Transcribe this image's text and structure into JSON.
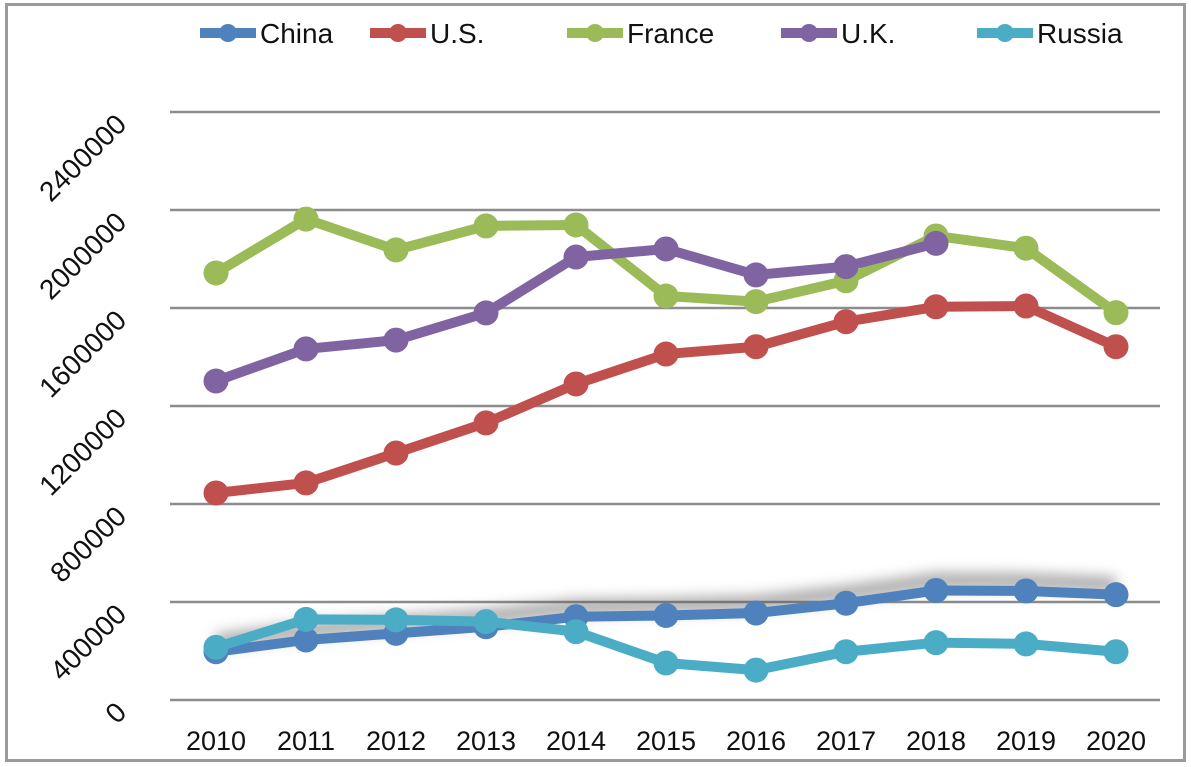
{
  "chart_data": {
    "type": "line",
    "title": "",
    "xlabel": "",
    "ylabel": "",
    "categories": [
      "2010",
      "2011",
      "2012",
      "2013",
      "2014",
      "2015",
      "2016",
      "2017",
      "2018",
      "2019",
      "2020"
    ],
    "ylim": [
      0,
      2400000
    ],
    "yticks": [
      "0",
      "400000",
      "800000",
      "1200000",
      "1600000",
      "2000000",
      "2400000"
    ],
    "ytick_values": [
      0,
      400000,
      800000,
      1200000,
      1600000,
      2000000,
      2400000
    ],
    "grid": true,
    "legend_position": "top",
    "series": [
      {
        "name": "China",
        "color": "#4F81BD",
        "values": [
          197000,
          245000,
          272000,
          299000,
          340000,
          345000,
          355000,
          395000,
          447000,
          445000,
          430000
        ]
      },
      {
        "name": "U.S.",
        "color": "#C0504D",
        "values": [
          845000,
          886000,
          1008000,
          1131000,
          1290000,
          1412000,
          1442000,
          1544000,
          1605000,
          1608000,
          1442000
        ]
      },
      {
        "name": "France",
        "color": "#9BBB59",
        "values": [
          1743000,
          1963000,
          1837000,
          1935000,
          1939000,
          1649000,
          1626000,
          1711000,
          1894000,
          1844000,
          1581000
        ]
      },
      {
        "name": "U.K.",
        "color": "#8064A2",
        "values": [
          1302000,
          1433000,
          1469000,
          1580000,
          1808000,
          1841000,
          1735000,
          1769000,
          1864000,
          null,
          null
        ]
      },
      {
        "name": "Russia",
        "color": "#4BACC6",
        "values": [
          215000,
          329000,
          327000,
          320000,
          279000,
          151000,
          122000,
          197000,
          234000,
          229000,
          197000
        ]
      }
    ]
  }
}
